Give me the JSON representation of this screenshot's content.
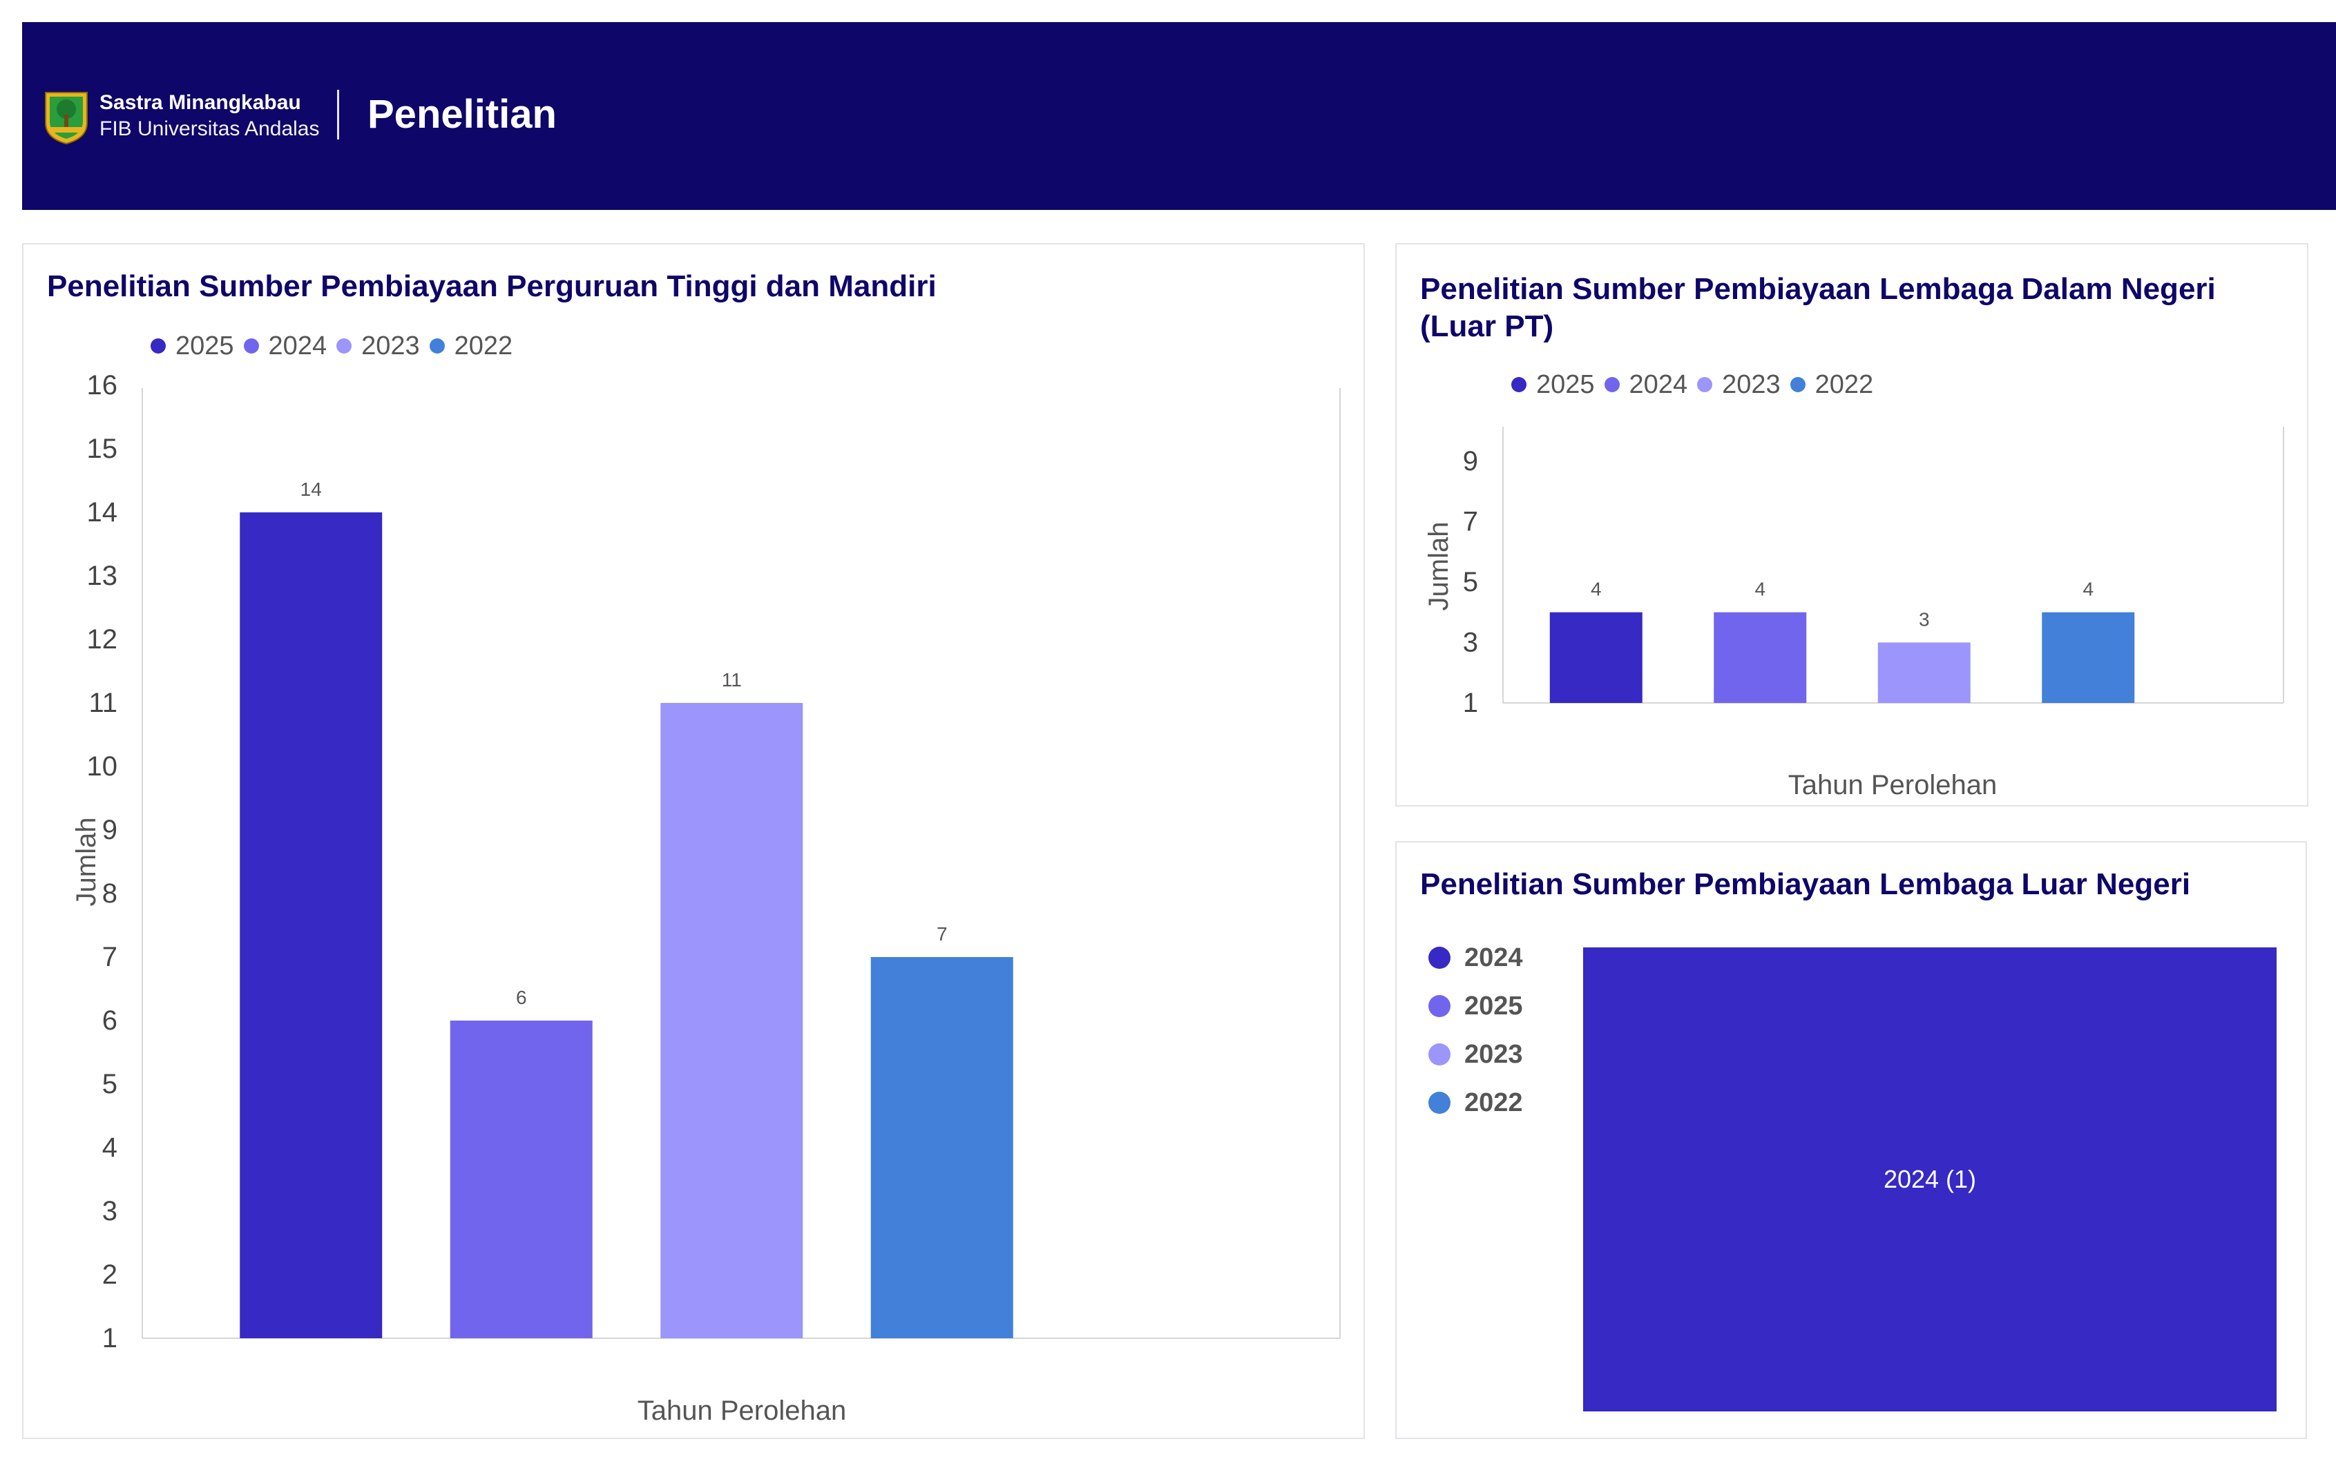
{
  "header": {
    "brand_line1": "Sastra Minangkabau",
    "brand_line2": "FIB Universitas Andalas",
    "title": "Penelitian"
  },
  "colors": {
    "header_bg": "#0e0669",
    "y2025": "#3629c4",
    "y2024": "#7165ee",
    "y2023": "#9b95fc",
    "y2022": "#4280d9"
  },
  "chart_data": [
    {
      "type": "bar",
      "title": "Penelitian Sumber Pembiayaan Perguruan Tinggi dan Mandiri",
      "xlabel": "Tahun Perolehan",
      "ylabel": "Jumlah",
      "legend": [
        "2025",
        "2024",
        "2023",
        "2022"
      ],
      "series": [
        {
          "name": "2025",
          "value": 14,
          "color": "#3629c4"
        },
        {
          "name": "2024",
          "value": 6,
          "color": "#7165ee"
        },
        {
          "name": "2023",
          "value": 11,
          "color": "#9b95fc"
        },
        {
          "name": "2022",
          "value": 7,
          "color": "#4280d9"
        }
      ],
      "ylim": [
        1,
        16
      ],
      "yticks": [
        1,
        2,
        3,
        4,
        5,
        6,
        7,
        8,
        9,
        10,
        11,
        12,
        13,
        14,
        15,
        16
      ]
    },
    {
      "type": "bar",
      "title": "Penelitian Sumber Pembiayaan Lembaga Dalam Negeri (Luar PT)",
      "xlabel": "Tahun Perolehan",
      "ylabel": "Jumlah",
      "legend": [
        "2025",
        "2024",
        "2023",
        "2022"
      ],
      "series": [
        {
          "name": "2025",
          "value": 4,
          "color": "#3629c4"
        },
        {
          "name": "2024",
          "value": 4,
          "color": "#7165ee"
        },
        {
          "name": "2023",
          "value": 3,
          "color": "#9b95fc"
        },
        {
          "name": "2022",
          "value": 4,
          "color": "#4280d9"
        }
      ],
      "ylim": [
        1,
        10
      ],
      "yticks": [
        1,
        3,
        5,
        7,
        9
      ]
    },
    {
      "type": "treemap",
      "title": "Penelitian Sumber Pembiayaan Lembaga Luar Negeri",
      "legend": [
        {
          "name": "2024",
          "color": "#3629c4"
        },
        {
          "name": "2025",
          "color": "#7165ee"
        },
        {
          "name": "2023",
          "color": "#9b95fc"
        },
        {
          "name": "2022",
          "color": "#4280d9"
        }
      ],
      "items": [
        {
          "name": "2024",
          "value": 1,
          "label": "2024 (1)"
        }
      ]
    }
  ]
}
